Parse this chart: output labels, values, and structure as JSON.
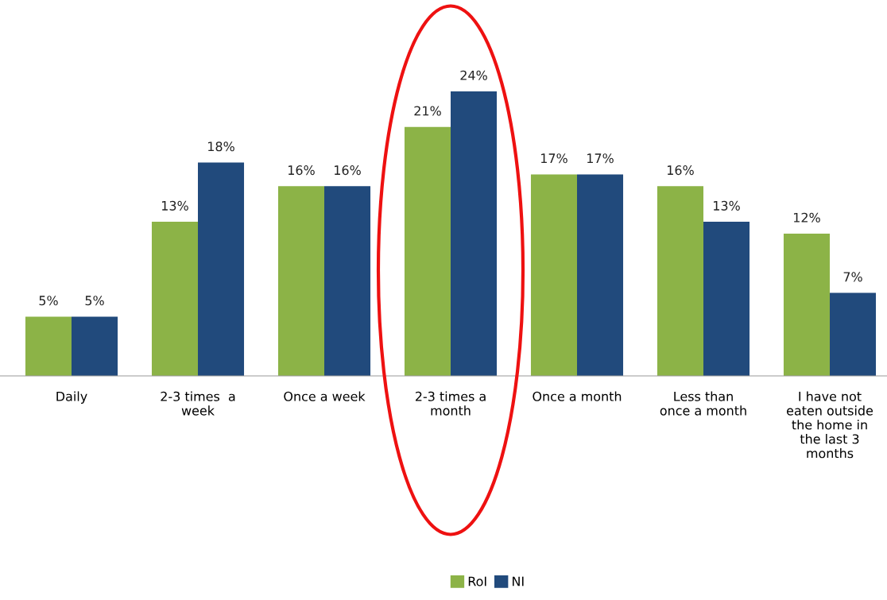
{
  "chart_data": {
    "type": "bar",
    "categories": [
      "Daily",
      "2-3 times  a\nweek",
      "Once a week",
      "2-3 times a\nmonth",
      "Once a month",
      "Less than\nonce a month",
      "I have not\neaten outside\nthe home in\nthe last 3\nmonths"
    ],
    "series": [
      {
        "name": "RoI",
        "color": "#8cb347",
        "values": [
          5,
          13,
          16,
          21,
          17,
          16,
          12
        ],
        "value_labels": [
          "5%",
          "13%",
          "16%",
          "21%",
          "17%",
          "16%",
          "12%"
        ]
      },
      {
        "name": "NI",
        "color": "#214a7c",
        "values": [
          5,
          18,
          16,
          24,
          17,
          13,
          7
        ],
        "value_labels": [
          "5%",
          "18%",
          "16%",
          "24%",
          "17%",
          "13%",
          "7%"
        ]
      }
    ],
    "grid": false,
    "legend": "bottom"
  }
}
